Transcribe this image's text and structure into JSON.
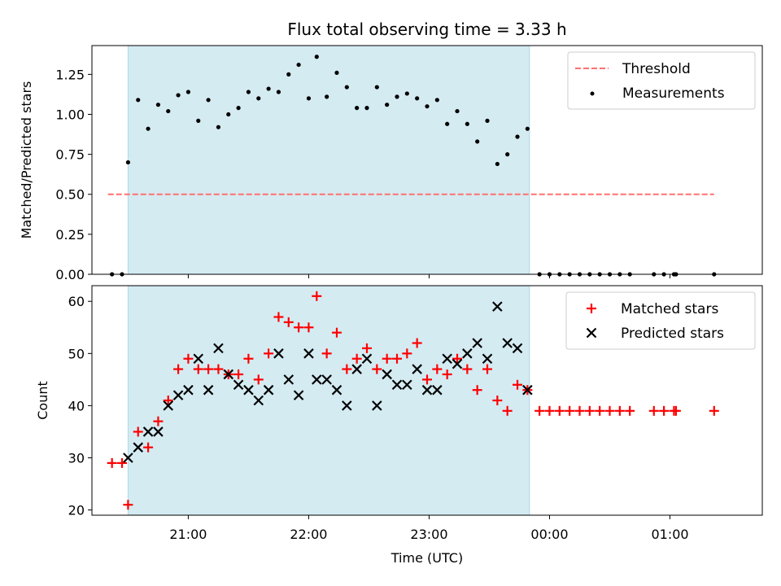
{
  "chart_data": [
    {
      "type": "scatter",
      "title": "Flux total observing time = 3.33 h",
      "xlabel": "",
      "ylabel": "Matched/Predicted stars",
      "xlim": [
        "20:12",
        "01:46"
      ],
      "ylim": [
        0,
        1.43
      ],
      "yticks": [
        "0.00",
        "0.25",
        "0.50",
        "0.75",
        "1.00",
        "1.25"
      ],
      "shaded_interval": [
        "20:30",
        "23:50"
      ],
      "shade_color": "#add8e6",
      "threshold": {
        "value": 0.5,
        "x_start": "20:20",
        "x_end": "01:22",
        "color": "#ff7070"
      },
      "legend": {
        "position": "top-right",
        "entries": [
          "Threshold",
          "Measurements"
        ]
      },
      "series": [
        {
          "name": "Measurements",
          "color": "#000000",
          "marker": "dot",
          "x": [
            "20:22",
            "20:27",
            "20:30",
            "20:35",
            "20:40",
            "20:45",
            "20:50",
            "20:55",
            "21:00",
            "21:05",
            "21:10",
            "21:15",
            "21:20",
            "21:25",
            "21:30",
            "21:35",
            "21:40",
            "21:45",
            "21:50",
            "21:55",
            "22:00",
            "22:04",
            "22:09",
            "22:14",
            "22:19",
            "22:24",
            "22:29",
            "22:34",
            "22:39",
            "22:44",
            "22:49",
            "22:54",
            "22:59",
            "23:04",
            "23:09",
            "23:14",
            "23:19",
            "23:24",
            "23:29",
            "23:34",
            "23:39",
            "23:44",
            "23:49",
            "23:55",
            "00:00",
            "00:05",
            "00:10",
            "00:15",
            "00:20",
            "00:25",
            "00:30",
            "00:35",
            "00:40",
            "00:52",
            "00:57",
            "01:02",
            "01:03",
            "01:22"
          ],
          "y": [
            0,
            0,
            0.7,
            1.09,
            0.91,
            1.06,
            1.02,
            1.12,
            1.14,
            0.96,
            1.09,
            0.92,
            1.0,
            1.04,
            1.14,
            1.1,
            1.16,
            1.14,
            1.25,
            1.31,
            1.1,
            1.36,
            1.11,
            1.26,
            1.17,
            1.04,
            1.04,
            1.17,
            1.06,
            1.11,
            1.13,
            1.1,
            1.05,
            1.09,
            0.94,
            1.02,
            0.94,
            0.83,
            0.96,
            0.69,
            0.75,
            0.86,
            0.91,
            0,
            0,
            0,
            0,
            0,
            0,
            0,
            0,
            0,
            0,
            0,
            0,
            0,
            0,
            0
          ]
        }
      ]
    },
    {
      "type": "scatter",
      "title": "",
      "xlabel": "Time (UTC)",
      "ylabel": "Count",
      "xlim": [
        "20:12",
        "01:46"
      ],
      "ylim": [
        19,
        63
      ],
      "yticks": [
        "20",
        "30",
        "40",
        "50",
        "60"
      ],
      "xticks": [
        "21:00",
        "22:00",
        "23:00",
        "00:00",
        "01:00"
      ],
      "shaded_interval": [
        "20:30",
        "23:50"
      ],
      "shade_color": "#add8e6",
      "legend": {
        "position": "top-right",
        "entries": [
          "Matched stars",
          "Predicted stars"
        ]
      },
      "series": [
        {
          "name": "Matched stars",
          "color": "#ff0000",
          "marker": "plus",
          "x": [
            "20:22",
            "20:27",
            "20:30",
            "20:35",
            "20:40",
            "20:45",
            "20:50",
            "20:55",
            "21:00",
            "21:05",
            "21:10",
            "21:15",
            "21:20",
            "21:25",
            "21:30",
            "21:35",
            "21:40",
            "21:45",
            "21:50",
            "21:55",
            "22:00",
            "22:04",
            "22:09",
            "22:14",
            "22:19",
            "22:24",
            "22:29",
            "22:34",
            "22:39",
            "22:44",
            "22:49",
            "22:54",
            "22:59",
            "23:04",
            "23:09",
            "23:14",
            "23:19",
            "23:24",
            "23:29",
            "23:34",
            "23:39",
            "23:44",
            "23:49",
            "23:55",
            "00:00",
            "00:05",
            "00:10",
            "00:15",
            "00:20",
            "00:25",
            "00:30",
            "00:35",
            "00:40",
            "00:52",
            "00:57",
            "01:02",
            "01:03",
            "01:22"
          ],
          "y": [
            29,
            29,
            21,
            35,
            32,
            37,
            41,
            47,
            49,
            47,
            47,
            47,
            46,
            46,
            49,
            45,
            50,
            57,
            56,
            55,
            55,
            61,
            50,
            54,
            47,
            49,
            51,
            47,
            49,
            49,
            50,
            52,
            45,
            47,
            46,
            49,
            47,
            43,
            47,
            41,
            39,
            44,
            43,
            39,
            39,
            39,
            39,
            39,
            39,
            39,
            39,
            39,
            39,
            39,
            39,
            39,
            39,
            39
          ]
        },
        {
          "name": "Predicted stars",
          "color": "#000000",
          "marker": "x",
          "x": [
            "20:30",
            "20:35",
            "20:40",
            "20:45",
            "20:50",
            "20:55",
            "21:00",
            "21:05",
            "21:10",
            "21:15",
            "21:20",
            "21:25",
            "21:30",
            "21:35",
            "21:40",
            "21:45",
            "21:50",
            "21:55",
            "22:00",
            "22:04",
            "22:09",
            "22:14",
            "22:19",
            "22:24",
            "22:29",
            "22:34",
            "22:39",
            "22:44",
            "22:49",
            "22:54",
            "22:59",
            "23:04",
            "23:09",
            "23:14",
            "23:19",
            "23:24",
            "23:29",
            "23:34",
            "23:39",
            "23:44",
            "23:49"
          ],
          "y": [
            30,
            32,
            35,
            35,
            40,
            42,
            43,
            49,
            43,
            51,
            46,
            44,
            43,
            41,
            43,
            50,
            45,
            42,
            50,
            45,
            45,
            43,
            40,
            47,
            49,
            40,
            46,
            44,
            44,
            47,
            43,
            43,
            49,
            48,
            50,
            52,
            49,
            59,
            52,
            51,
            43
          ]
        }
      ]
    }
  ]
}
